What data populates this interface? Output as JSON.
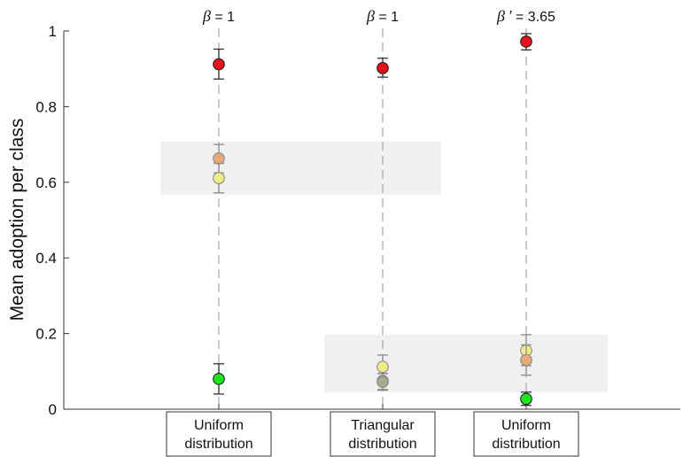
{
  "chart_data": {
    "type": "scatter",
    "ylabel": "Mean adoption per class",
    "ylim": [
      0,
      1
    ],
    "yticks": [
      "0",
      "0.2",
      "0.4",
      "0.6",
      "0.8",
      "1"
    ],
    "grid": false,
    "categories": [
      {
        "line1": "Uniform",
        "line2": "distribution",
        "param_symbol": "β",
        "param_prime": "",
        "param_value": "= 1",
        "points": [
          {
            "class": "red",
            "y": 0.912,
            "err_low": 0.873,
            "err_high": 0.952
          },
          {
            "class": "orange",
            "y": 0.663,
            "err_low": 0.625,
            "err_high": 0.7
          },
          {
            "class": "yellow",
            "y": 0.611,
            "err_low": 0.572,
            "err_high": 0.65
          },
          {
            "class": "green",
            "y": 0.08,
            "err_low": 0.04,
            "err_high": 0.12
          }
        ]
      },
      {
        "line1": "Triangular",
        "line2": "distribution",
        "param_symbol": "β",
        "param_prime": "",
        "param_value": "= 1",
        "points": [
          {
            "class": "red",
            "y": 0.902,
            "err_low": 0.878,
            "err_high": 0.928
          },
          {
            "class": "yellow",
            "y": 0.112,
            "err_low": 0.08,
            "err_high": 0.143
          },
          {
            "class": "orange",
            "y": 0.075,
            "err_low": 0.052,
            "err_high": 0.095
          },
          {
            "class": "green-gray",
            "y": 0.072,
            "err_low": 0.05,
            "err_high": 0.094
          }
        ]
      },
      {
        "line1": "Uniform",
        "line2": "distribution",
        "param_symbol": "β",
        "param_prime": "′",
        "param_value": "= 3.65",
        "points": [
          {
            "class": "red",
            "y": 0.972,
            "err_low": 0.95,
            "err_high": 0.993
          },
          {
            "class": "yellow",
            "y": 0.155,
            "err_low": 0.115,
            "err_high": 0.197
          },
          {
            "class": "orange",
            "y": 0.13,
            "err_low": 0.09,
            "err_high": 0.17
          },
          {
            "class": "green",
            "y": 0.027,
            "err_low": 0.01,
            "err_high": 0.045
          }
        ]
      }
    ],
    "highlight_bands": [
      {
        "from_category": 0,
        "to_category": 1,
        "ymin": 0.567,
        "ymax": 0.708
      },
      {
        "from_category": 1,
        "to_category": 2,
        "ymin": 0.045,
        "ymax": 0.197
      }
    ],
    "colors": {
      "red": "#e8101a",
      "orange": "#e8a97a",
      "yellow": "#f0ec8a",
      "green": "#1ee61e",
      "green-gray": "#a8aa90",
      "band": "#f0f0f0",
      "axis": "#333333",
      "dash": "#a6a6a6",
      "errorbar": "#333333",
      "errorbar_light": "#8c8c8c"
    }
  }
}
